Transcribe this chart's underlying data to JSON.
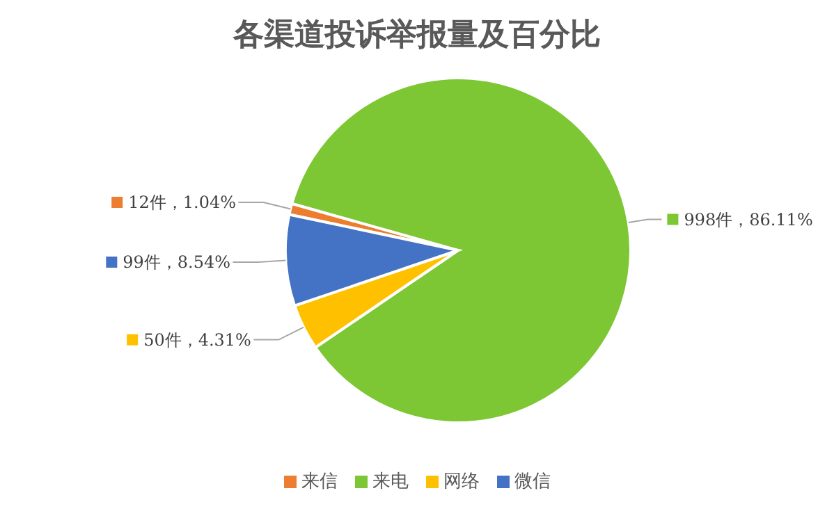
{
  "chart_data": {
    "type": "pie",
    "title": "各渠道投诉举报量及百分比",
    "categories": [
      "来信",
      "来电",
      "网络",
      "微信"
    ],
    "values": [
      12,
      998,
      50,
      99
    ],
    "colors": [
      "#ed7d31",
      "#7cc733",
      "#ffc000",
      "#4472c4"
    ],
    "value_labels": [
      "12件，1.04%",
      "998件，86.11%",
      "50件，4.31%",
      "99件，8.54%"
    ],
    "legend": "bottom"
  }
}
